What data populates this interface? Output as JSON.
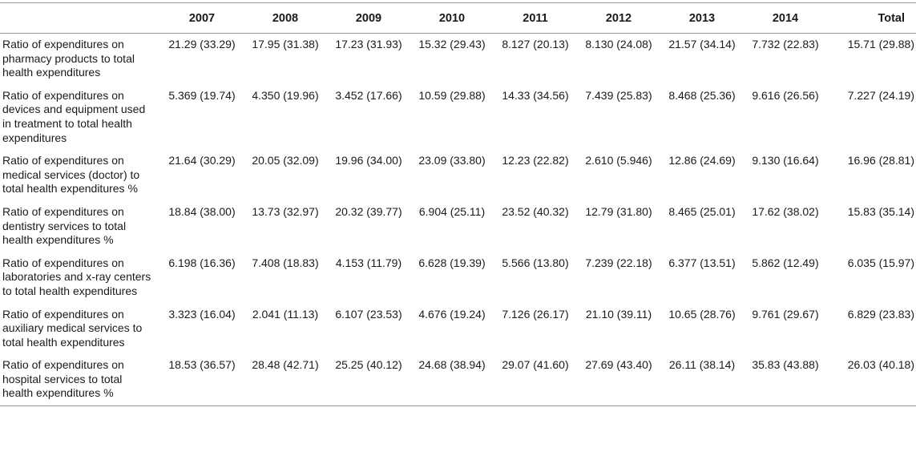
{
  "table": {
    "columns": [
      "",
      "2007",
      "2008",
      "2009",
      "2010",
      "2011",
      "2012",
      "2013",
      "2014",
      "Total"
    ],
    "rows": [
      {
        "label": "Ratio of expenditures on pharmacy products to total health expenditures",
        "values": [
          "21.29 (33.29)",
          "17.95 (31.38)",
          "17.23 (31.93)",
          "15.32 (29.43)",
          "8.127 (20.13)",
          "8.130 (24.08)",
          "21.57 (34.14)",
          "7.732 (22.83)",
          "15.71 (29.88)"
        ]
      },
      {
        "label": "Ratio of expenditures on devices and equipment used in treatment to total health expenditures",
        "values": [
          "5.369 (19.74)",
          "4.350 (19.96)",
          "3.452 (17.66)",
          "10.59 (29.88)",
          "14.33 (34.56)",
          "7.439 (25.83)",
          "8.468 (25.36)",
          "9.616 (26.56)",
          "7.227 (24.19)"
        ]
      },
      {
        "label": "Ratio of expenditures on medical services (doctor) to total health expenditures %",
        "values": [
          "21.64 (30.29)",
          "20.05 (32.09)",
          "19.96 (34.00)",
          "23.09 (33.80)",
          "12.23 (22.82)",
          "2.610 (5.946)",
          "12.86 (24.69)",
          "9.130 (16.64)",
          "16.96 (28.81)"
        ]
      },
      {
        "label": "Ratio of expenditures on dentistry services to total health expenditures %",
        "values": [
          "18.84 (38.00)",
          "13.73 (32.97)",
          "20.32 (39.77)",
          "6.904 (25.11)",
          "23.52 (40.32)",
          "12.79 (31.80)",
          "8.465 (25.01)",
          "17.62 (38.02)",
          "15.83 (35.14)"
        ]
      },
      {
        "label": "Ratio of expenditures on laboratories and x-ray centers to total health expenditures",
        "values": [
          "6.198 (16.36)",
          "7.408 (18.83)",
          "4.153 (11.79)",
          "6.628 (19.39)",
          "5.566 (13.80)",
          "7.239 (22.18)",
          "6.377 (13.51)",
          "5.862 (12.49)",
          "6.035 (15.97)"
        ]
      },
      {
        "label": "Ratio of expenditures on auxiliary medical services to total health expenditures",
        "values": [
          "3.323 (16.04)",
          "2.041 (11.13)",
          "6.107 (23.53)",
          "4.676 (19.24)",
          "7.126 (26.17)",
          "21.10 (39.11)",
          "10.65 (28.76)",
          "9.761 (29.67)",
          "6.829 (23.83)"
        ]
      },
      {
        "label": "Ratio of expenditures on hospital services to total health expenditures %",
        "values": [
          "18.53 (36.57)",
          "28.48 (42.71)",
          "25.25 (40.12)",
          "24.68 (38.94)",
          "29.07 (41.60)",
          "27.69 (43.40)",
          "26.11 (38.14)",
          "35.83 (43.88)",
          "26.03 (40.18)"
        ]
      }
    ]
  }
}
